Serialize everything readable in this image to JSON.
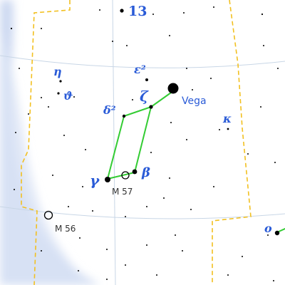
{
  "colors": {
    "background": "#ffffff",
    "milky_way": "#c9d6f0",
    "boundary": "#f2c020",
    "grid": "#c8d6e6",
    "figure_line": "#33cc33",
    "star": "#000000",
    "label": "#2a5bd7"
  },
  "labels": {
    "vega": "Vega",
    "zeta": "ζ",
    "epsilon2": "ε²",
    "delta2": "δ²",
    "gamma": "γ",
    "beta": "β",
    "kappa": "κ",
    "eta": "η",
    "theta": "ϑ",
    "omicron": "o",
    "num13": "13",
    "m57": "M 57",
    "m56": "M 56"
  }
}
